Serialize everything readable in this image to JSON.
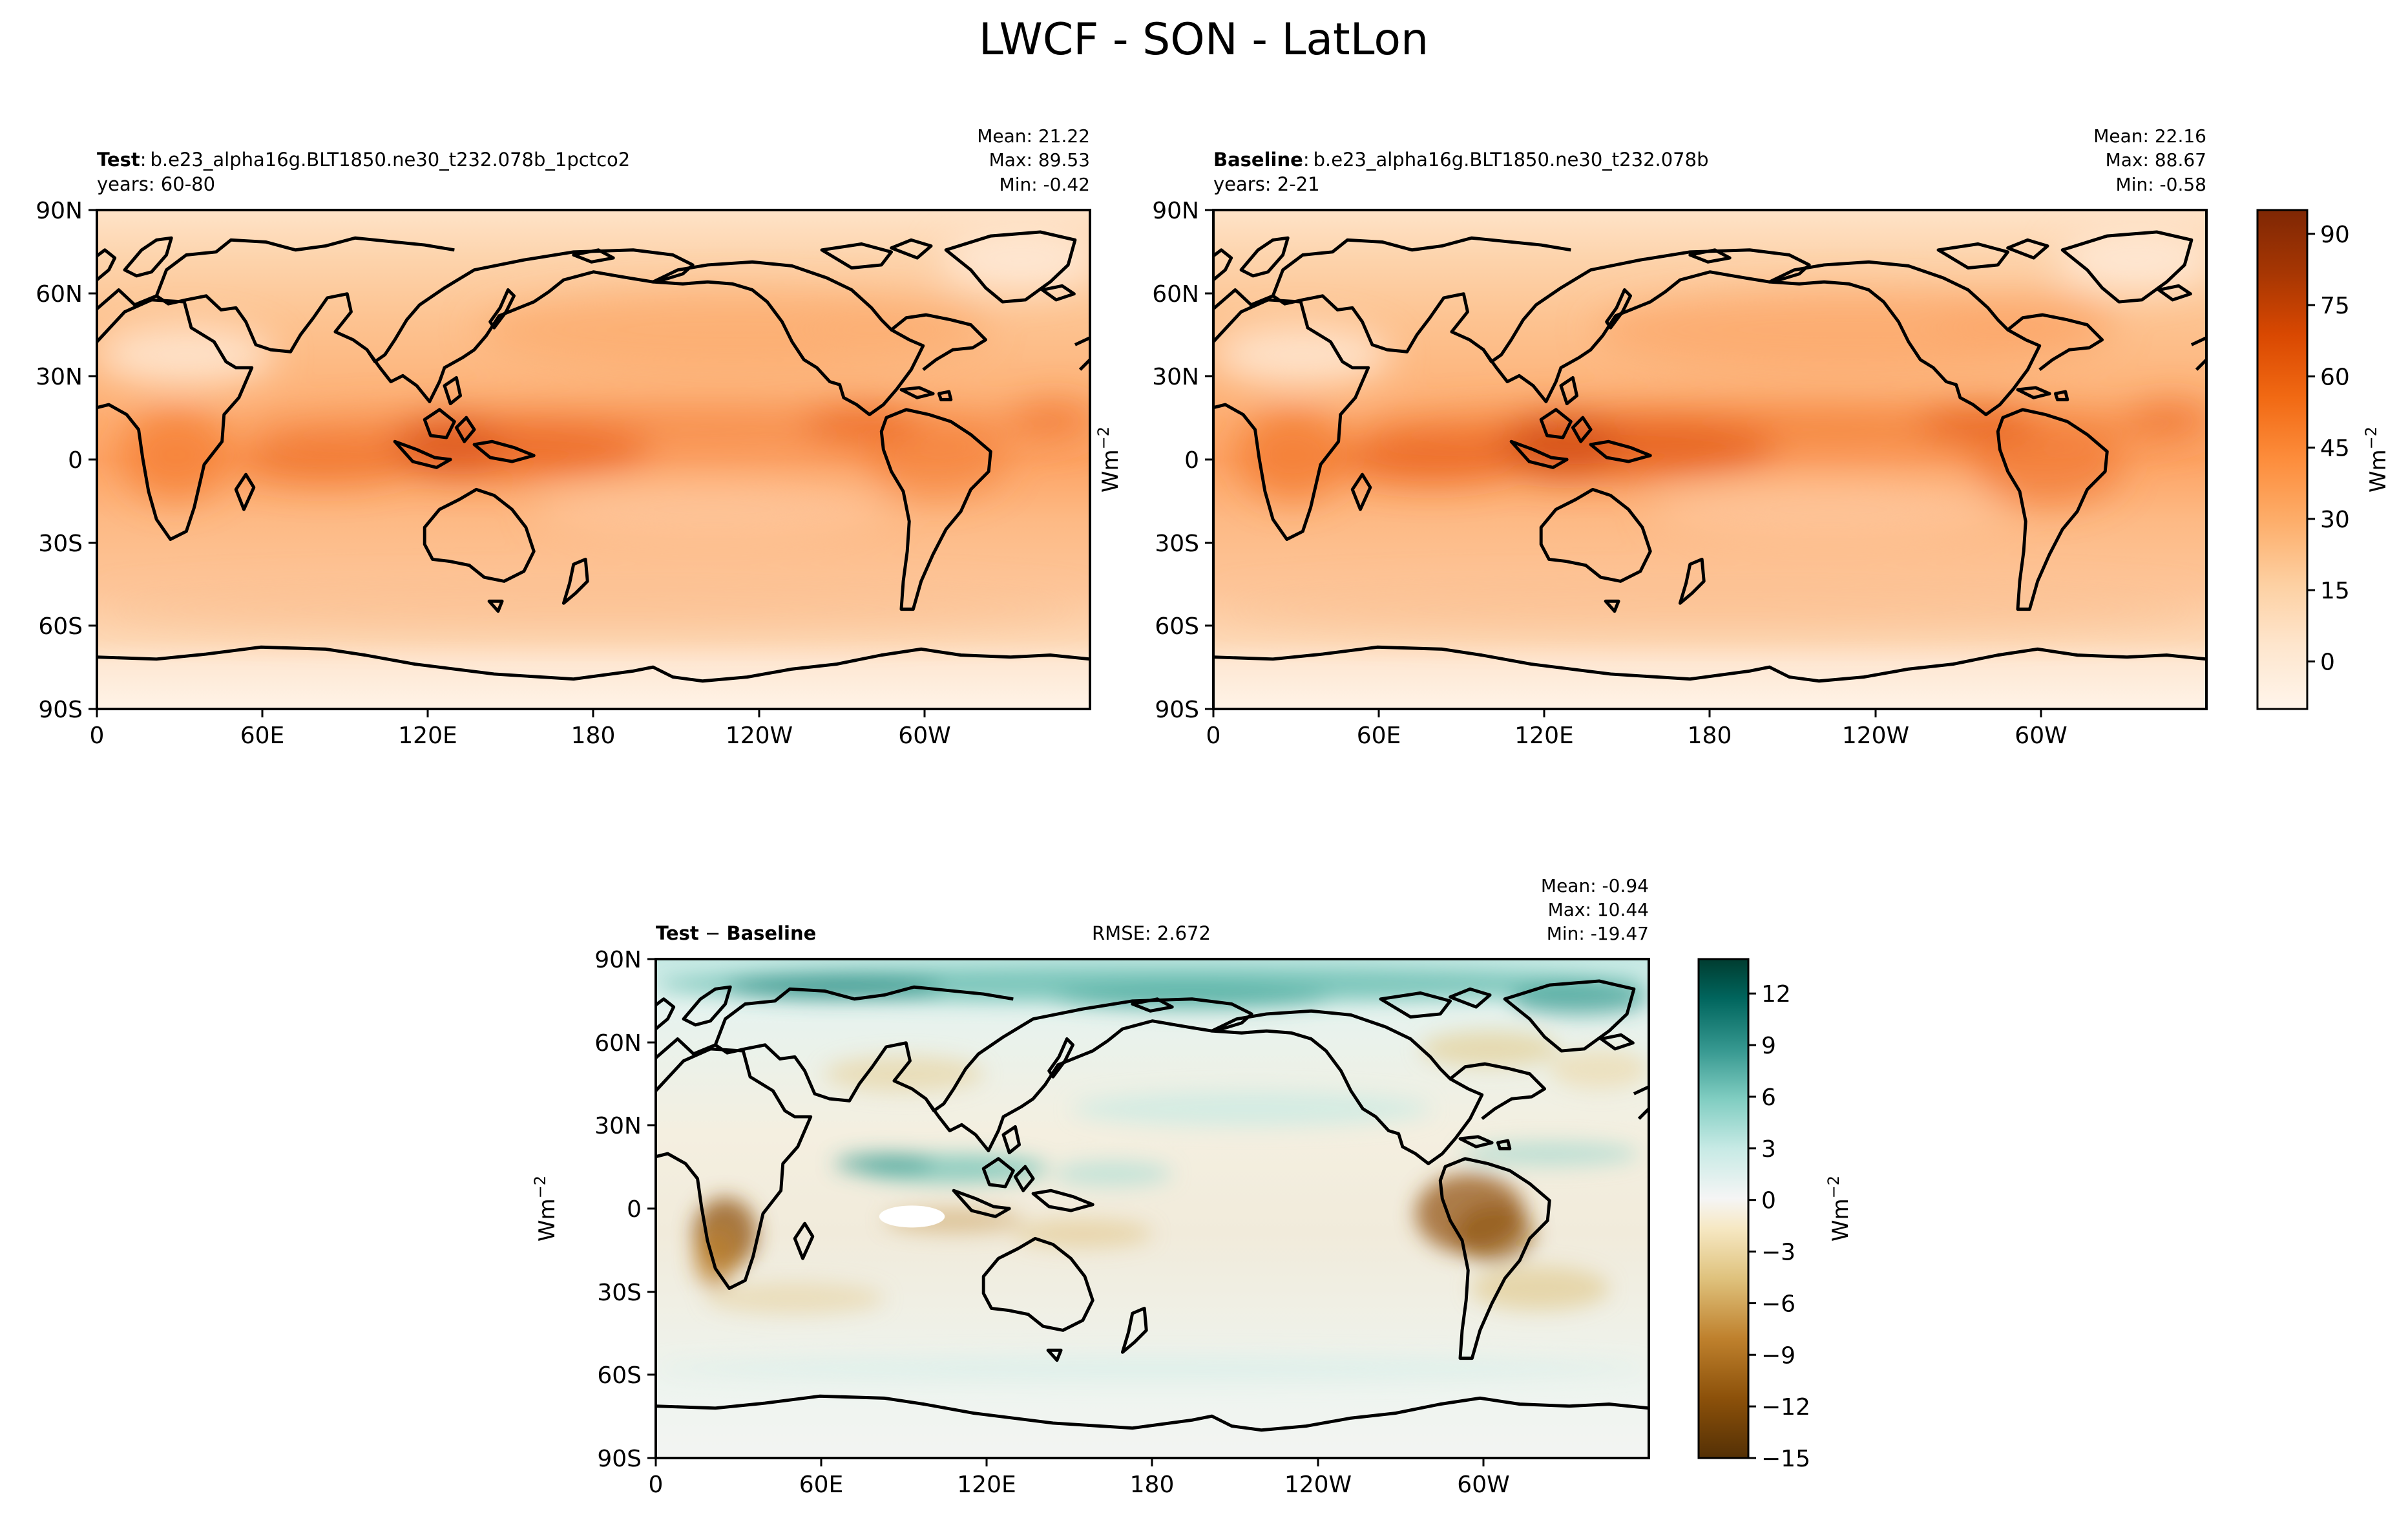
{
  "figure": {
    "title": "LWCF - SON - LatLon"
  },
  "colors": {
    "sequential": [
      "#fff5eb",
      "#fee6ce",
      "#fdd0a2",
      "#fdae6b",
      "#fd8d3c",
      "#f16913",
      "#d94801",
      "#a63603",
      "#7f2704"
    ],
    "diverging": [
      "#543005",
      "#8c510a",
      "#bf812d",
      "#dfc27d",
      "#f6e8c3",
      "#f5f5f5",
      "#c7eae5",
      "#80cdc1",
      "#35978f",
      "#01665e",
      "#003c30"
    ],
    "coastline": "#000000"
  },
  "icons": {
    "coastline": "coastline-outline"
  },
  "chart_data": [
    {
      "type": "heatmap",
      "panel": "test",
      "label_bold": "Test",
      "label_sep": ":",
      "case_name": "b.e23_alpha16g.BLT1850.ne30_t232.078b_1pctco2",
      "years": "years: 60-80",
      "stats": [
        "Mean: 21.22",
        "Max: 89.53",
        "Min: -0.42"
      ],
      "mean": 21.22,
      "max": 89.53,
      "min": -0.42,
      "colormap": "Oranges",
      "xticks": [
        "0",
        "60E",
        "120E",
        "180",
        "120W",
        "60W"
      ],
      "yticks": [
        "90N",
        "60N",
        "30N",
        "0",
        "30S",
        "60S",
        "90S"
      ],
      "xlim": [
        0,
        360
      ],
      "ylim": [
        -90,
        90
      ],
      "colorbar_ref": "shared_top"
    },
    {
      "type": "heatmap",
      "panel": "baseline",
      "label_bold": "Baseline",
      "label_sep": ":",
      "case_name": "b.e23_alpha16g.BLT1850.ne30_t232.078b",
      "years": "years: 2-21",
      "stats": [
        "Mean: 22.16",
        "Max: 88.67",
        "Min: -0.58"
      ],
      "mean": 22.16,
      "max": 88.67,
      "min": -0.58,
      "colormap": "Oranges",
      "xticks": [
        "0",
        "60E",
        "120E",
        "180",
        "120W",
        "60W"
      ],
      "yticks": [
        "90N",
        "60N",
        "30N",
        "0",
        "30S",
        "60S",
        "90S"
      ],
      "xlim": [
        0,
        360
      ],
      "ylim": [
        -90,
        90
      ],
      "colorbar": {
        "ticks": [
          "90",
          "75",
          "60",
          "45",
          "30",
          "15",
          "0"
        ],
        "tick_values": [
          90,
          75,
          60,
          45,
          30,
          15,
          0
        ],
        "range": [
          -10,
          95
        ],
        "label": "Wm",
        "label_sup": "−2"
      }
    },
    {
      "type": "heatmap",
      "panel": "difference",
      "label_left": "Test",
      "label_minus": " − ",
      "label_right": "Baseline",
      "rmse": "RMSE: 2.672",
      "stats": [
        "Mean: -0.94",
        "Max: 10.44",
        "Min: -19.47"
      ],
      "mean": -0.94,
      "max": 10.44,
      "min": -19.47,
      "rmse_value": 2.672,
      "colormap": "BrBG",
      "xticks": [
        "0",
        "60E",
        "120E",
        "180",
        "120W",
        "60W"
      ],
      "yticks": [
        "90N",
        "60N",
        "30N",
        "0",
        "30S",
        "60S",
        "90S"
      ],
      "xlim": [
        0,
        360
      ],
      "ylim": [
        -90,
        90
      ],
      "ylabel": "Wm",
      "ylabel_sup": "−2",
      "colorbar": {
        "ticks": [
          "12",
          "9",
          "6",
          "3",
          "0",
          "−3",
          "−6",
          "−9",
          "−12",
          "−15"
        ],
        "tick_values": [
          12,
          9,
          6,
          3,
          0,
          -3,
          -6,
          -9,
          -12,
          -15
        ],
        "range": [
          -15,
          14
        ],
        "label": "Wm",
        "label_sup": "−2"
      }
    }
  ],
  "shared_top": {
    "ylabel": "Wm",
    "ylabel_sup": "−2"
  }
}
